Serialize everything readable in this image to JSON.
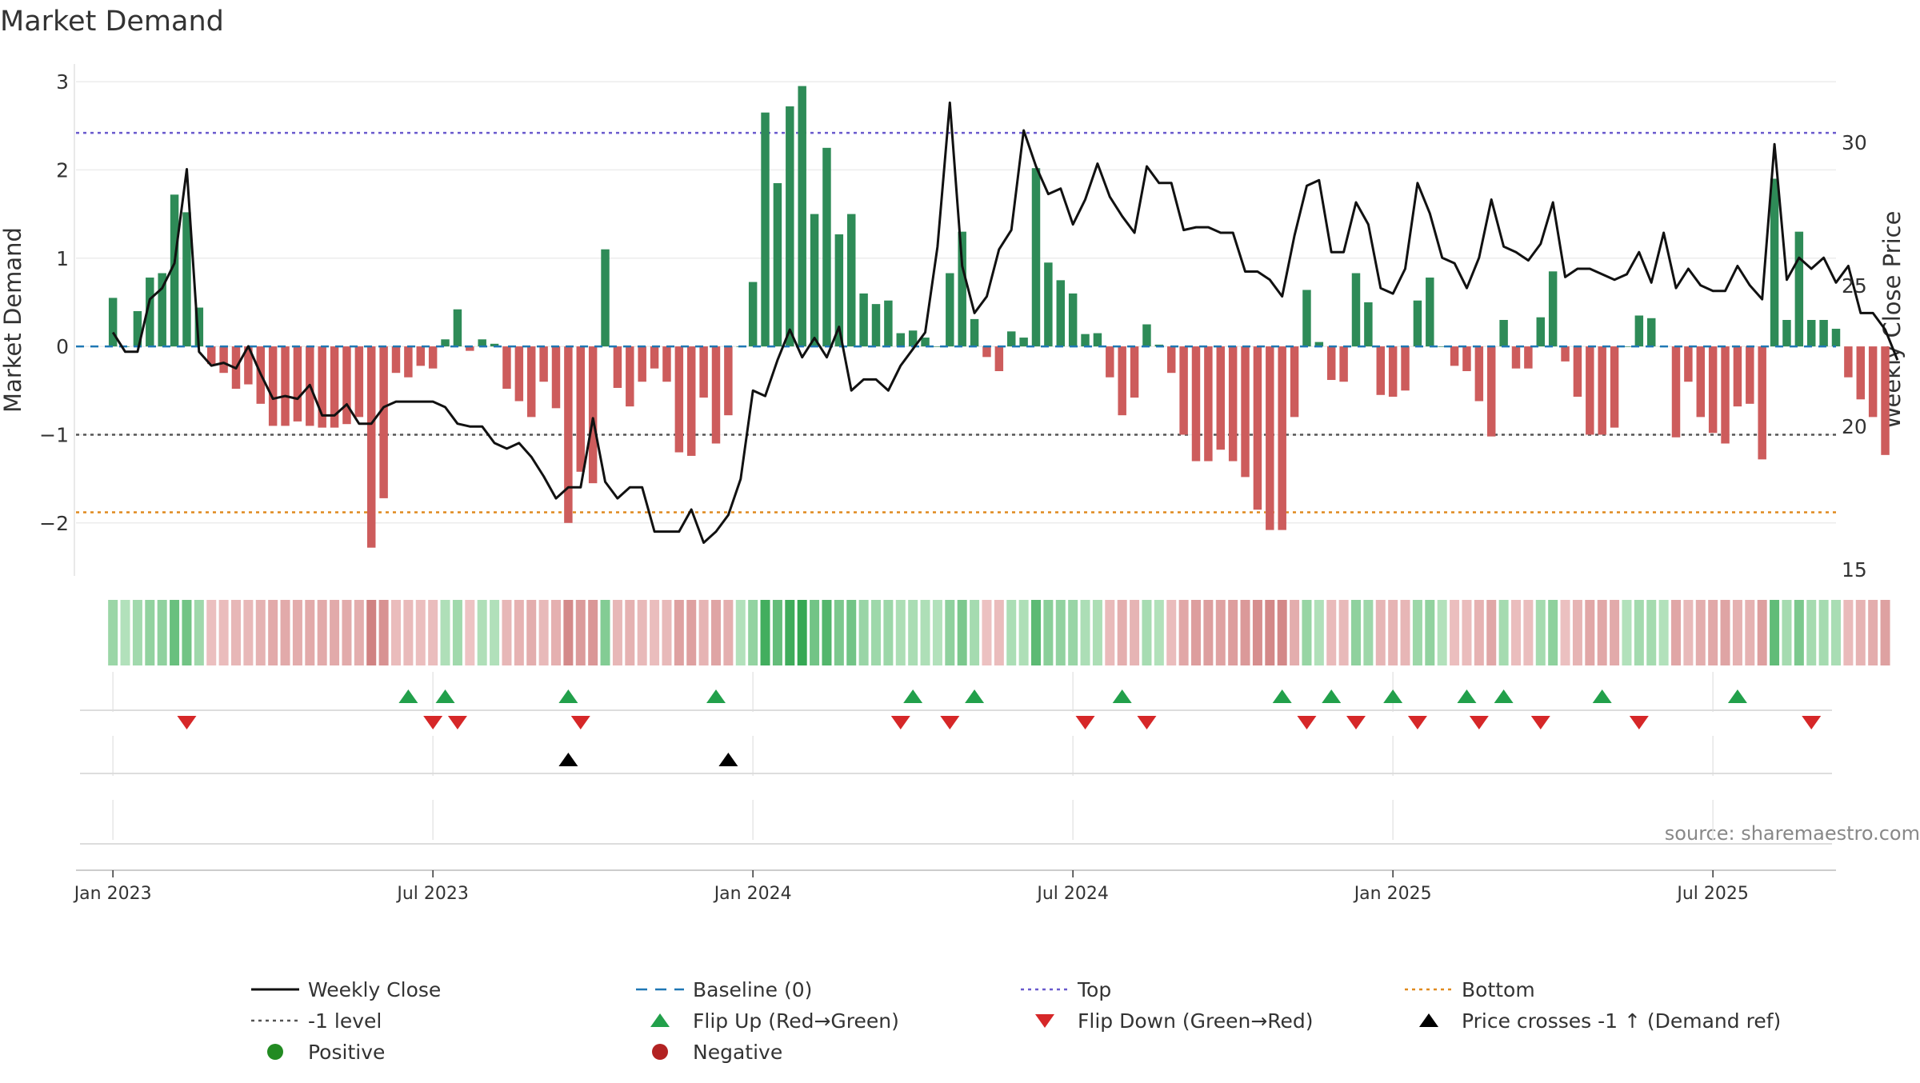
{
  "chart_data": {
    "type": "bar",
    "title": "Market Demand",
    "ylabel_left": "Market Demand",
    "ylabel_right": "Weekly Close Price",
    "source": "source: sharemaestro.com",
    "ylim_left": [
      -2.6,
      3.2
    ],
    "ylim_right": [
      14.4,
      32.9
    ],
    "yticks_left": [
      3,
      2,
      1,
      0,
      -1,
      -2
    ],
    "ytick_labels_left": [
      "3",
      "2",
      "1",
      "0",
      "−1",
      "−2"
    ],
    "yticks_right": [
      30,
      25,
      20,
      15
    ],
    "ytick_labels_right": [
      "30",
      "25",
      "20",
      "15"
    ],
    "x_range_weeks": [
      -3,
      140
    ],
    "x_ticks": [
      {
        "label": "Jan 2023",
        "week": 0
      },
      {
        "label": "Jul 2023",
        "week": 26
      },
      {
        "label": "Jan 2024",
        "week": 52
      },
      {
        "label": "Jul 2024",
        "week": 78
      },
      {
        "label": "Jan 2025",
        "week": 104
      },
      {
        "label": "Jul 2025",
        "week": 130
      }
    ],
    "reference_lines": {
      "top": 2.42,
      "bottom": -1.88,
      "minus_one": -1.0,
      "baseline": 0
    },
    "colors": {
      "positive": "#2e8b57",
      "negative": "#cd5c5c",
      "price": "#111111",
      "top": "#6a5acd",
      "bottom": "#e08a1e",
      "minus_one": "#555555",
      "baseline": "#1f77b4",
      "flip_up": "#22a04b",
      "flip_down": "#d62728",
      "cross": "#000000",
      "legend_positive": "#228b22",
      "legend_negative": "#b22222"
    },
    "demand": [
      0.55,
      0.0,
      0.4,
      0.78,
      0.83,
      1.72,
      1.52,
      0.44,
      -0.2,
      -0.3,
      -0.48,
      -0.43,
      -0.65,
      -0.9,
      -0.9,
      -0.85,
      -0.9,
      -0.92,
      -0.92,
      -0.88,
      -0.8,
      -2.28,
      -1.72,
      -0.3,
      -0.35,
      -0.22,
      -0.25,
      0.08,
      0.42,
      -0.05,
      0.08,
      0.03,
      -0.48,
      -0.62,
      -0.8,
      -0.4,
      -0.7,
      -2.0,
      -1.42,
      -1.55,
      1.1,
      -0.47,
      -0.68,
      -0.4,
      -0.25,
      -0.4,
      -1.2,
      -1.24,
      -0.58,
      -1.1,
      -0.78,
      0.0,
      0.73,
      2.65,
      1.85,
      2.72,
      2.95,
      1.5,
      2.25,
      1.27,
      1.5,
      0.6,
      0.48,
      0.52,
      0.15,
      0.18,
      0.1,
      0.0,
      0.83,
      1.3,
      0.31,
      -0.12,
      -0.28,
      0.17,
      0.1,
      2.02,
      0.95,
      0.75,
      0.6,
      0.14,
      0.15,
      -0.35,
      -0.78,
      -0.58,
      0.25,
      0.02,
      -0.3,
      -1.0,
      -1.3,
      -1.3,
      -1.17,
      -1.3,
      -1.48,
      -1.85,
      -2.08,
      -2.08,
      -0.8,
      0.64,
      0.05,
      -0.38,
      -0.4,
      0.83,
      0.5,
      -0.55,
      -0.57,
      -0.5,
      0.52,
      0.78,
      0.0,
      -0.22,
      -0.28,
      -0.62,
      -1.02,
      0.3,
      -0.25,
      -0.25,
      0.33,
      0.85,
      -0.17,
      -0.57,
      -1.0,
      -1.0,
      -0.92,
      0.0,
      0.35,
      0.32,
      0.0,
      -1.03,
      -0.4,
      -0.8,
      -0.98,
      -1.1,
      -0.68,
      -0.65,
      -1.28,
      1.9,
      0.3,
      1.3,
      0.3,
      0.3,
      0.2,
      -0.35,
      -0.6,
      -0.8,
      -1.23
    ],
    "close": [
      23.2,
      22.5,
      22.5,
      24.4,
      24.8,
      25.7,
      29.1,
      22.5,
      22.0,
      22.1,
      21.9,
      22.7,
      21.7,
      20.8,
      20.9,
      20.8,
      21.3,
      20.2,
      20.2,
      20.6,
      19.9,
      19.9,
      20.5,
      20.7,
      20.7,
      20.7,
      20.7,
      20.5,
      19.9,
      19.8,
      19.8,
      19.2,
      19.0,
      19.2,
      18.7,
      18.0,
      17.2,
      17.6,
      17.6,
      20.1,
      17.8,
      17.2,
      17.6,
      17.6,
      16.0,
      16.0,
      16.0,
      16.8,
      15.6,
      16.0,
      16.6,
      17.9,
      21.1,
      20.9,
      22.2,
      23.3,
      22.3,
      23.0,
      22.3,
      23.4,
      21.1,
      21.5,
      21.5,
      21.1,
      22.0,
      22.6,
      23.2,
      26.3,
      31.5,
      25.6,
      23.9,
      24.5,
      26.2,
      26.9,
      30.5,
      29.2,
      28.2,
      28.4,
      27.1,
      28.0,
      29.3,
      28.1,
      27.4,
      26.8,
      29.2,
      28.6,
      28.6,
      26.9,
      27.0,
      27.0,
      26.8,
      26.8,
      25.4,
      25.4,
      25.1,
      24.5,
      26.7,
      28.5,
      28.7,
      26.1,
      26.1,
      27.9,
      27.1,
      24.8,
      24.6,
      25.5,
      28.6,
      27.5,
      25.9,
      25.7,
      24.8,
      25.9,
      28.0,
      26.3,
      26.1,
      25.8,
      26.4,
      27.9,
      25.2,
      25.5,
      25.5,
      25.3,
      25.1,
      25.3,
      26.1,
      25.0,
      26.8,
      24.8,
      25.5,
      24.9,
      24.7,
      24.7,
      25.6,
      24.9,
      24.4,
      30.0,
      25.1,
      25.9,
      25.5,
      25.9,
      25.0,
      25.6,
      23.9,
      23.9,
      23.3,
      22.2
    ],
    "flip_up_weeks": [
      24,
      27,
      37,
      49,
      65,
      70,
      82,
      95,
      99,
      104,
      110,
      113,
      121,
      132
    ],
    "flip_down_weeks": [
      6,
      26,
      28,
      38,
      64,
      68,
      79,
      84,
      97,
      101,
      106,
      111,
      116,
      124,
      138
    ],
    "price_cross_weeks": [
      37,
      50
    ],
    "legend": [
      {
        "label": "Weekly Close",
        "marker": "line-solid"
      },
      {
        "label": "Baseline (0)",
        "marker": "line-dash"
      },
      {
        "label": "Top",
        "marker": "line-dot-top"
      },
      {
        "label": "Bottom",
        "marker": "line-dot-bottom"
      },
      {
        "label": "-1 level",
        "marker": "line-dot-minus"
      },
      {
        "label": "Flip Up (Red→Green)",
        "marker": "tri-up-green"
      },
      {
        "label": "Flip Down (Green→Red)",
        "marker": "tri-down-red"
      },
      {
        "label": "Price crosses -1 ↑ (Demand ref)",
        "marker": "tri-up-black"
      },
      {
        "label": "Positive",
        "marker": "circle-green"
      },
      {
        "label": "Negative",
        "marker": "circle-red"
      }
    ]
  }
}
